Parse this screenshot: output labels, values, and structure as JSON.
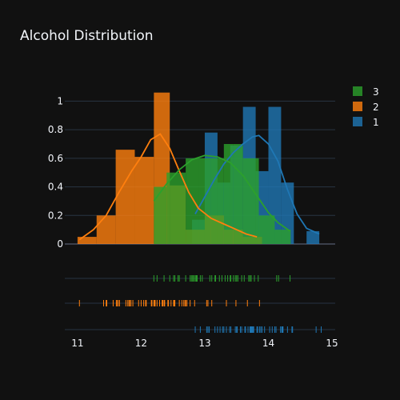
{
  "chart_data": {
    "type": "histogram",
    "title": "Alcohol Distribution",
    "x_range": [
      10.8,
      15.05
    ],
    "y_range": [
      0,
      1.12
    ],
    "x_ticks": [
      11,
      12,
      13,
      14,
      15
    ],
    "y_ticks": [
      0,
      0.2,
      0.4,
      0.6,
      0.8,
      1
    ],
    "x_tick_labels": [
      "11",
      "12",
      "13",
      "14",
      "15"
    ],
    "y_tick_labels": [
      "0",
      "0.2",
      "0.4",
      "0.6",
      "0.8",
      "1"
    ],
    "legend": {
      "placement": "top-right",
      "items": [
        "3",
        "2",
        "1"
      ]
    },
    "histnorm": "probability density",
    "opacity": 0.8,
    "series": [
      {
        "name": "1",
        "color": "#1f77b4",
        "bins": [
          {
            "x0": 12.8,
            "x1": 13.0,
            "density": 0.17
          },
          {
            "x0": 13.0,
            "x1": 13.2,
            "density": 0.78
          },
          {
            "x0": 13.2,
            "x1": 13.4,
            "density": 0.43
          },
          {
            "x0": 13.4,
            "x1": 13.6,
            "density": 0.69
          },
          {
            "x0": 13.6,
            "x1": 13.8,
            "density": 0.96
          },
          {
            "x0": 13.8,
            "x1": 14.0,
            "density": 0.51
          },
          {
            "x0": 14.0,
            "x1": 14.2,
            "density": 0.96
          },
          {
            "x0": 14.2,
            "x1": 14.4,
            "density": 0.43
          },
          {
            "x0": 14.6,
            "x1": 14.8,
            "density": 0.09
          }
        ],
        "kde": [
          [
            12.85,
            0.21
          ],
          [
            13.0,
            0.33
          ],
          [
            13.15,
            0.45
          ],
          [
            13.3,
            0.56
          ],
          [
            13.45,
            0.64
          ],
          [
            13.6,
            0.7
          ],
          [
            13.75,
            0.75
          ],
          [
            13.85,
            0.76
          ],
          [
            14.0,
            0.7
          ],
          [
            14.15,
            0.58
          ],
          [
            14.3,
            0.38
          ],
          [
            14.45,
            0.21
          ],
          [
            14.6,
            0.11
          ],
          [
            14.8,
            0.07
          ]
        ],
        "rug": [
          12.85,
          12.93,
          13.03,
          13.05,
          13.07,
          13.16,
          13.2,
          13.24,
          13.28,
          13.3,
          13.34,
          13.39,
          13.41,
          13.48,
          13.5,
          13.51,
          13.56,
          13.58,
          13.63,
          13.64,
          13.68,
          13.71,
          13.72,
          13.73,
          13.74,
          13.75,
          13.76,
          13.77,
          13.82,
          13.83,
          13.86,
          13.88,
          13.9,
          13.94,
          14.02,
          14.06,
          14.1,
          14.12,
          14.19,
          14.21,
          14.22,
          14.23,
          14.3,
          14.37,
          14.38,
          14.75,
          14.83
        ]
      },
      {
        "name": "2",
        "color": "#ff7f0e",
        "bins": [
          {
            "x0": 11.0,
            "x1": 11.3,
            "density": 0.05
          },
          {
            "x0": 11.3,
            "x1": 11.6,
            "density": 0.2
          },
          {
            "x0": 11.6,
            "x1": 11.9,
            "density": 0.66
          },
          {
            "x0": 11.9,
            "x1": 12.2,
            "density": 0.61
          },
          {
            "x0": 12.2,
            "x1": 12.45,
            "density": 1.06
          },
          {
            "x0": 12.45,
            "x1": 12.7,
            "density": 0.41
          },
          {
            "x0": 12.7,
            "x1": 13.0,
            "density": 0.1
          },
          {
            "x0": 13.0,
            "x1": 13.3,
            "density": 0.2
          },
          {
            "x0": 13.3,
            "x1": 13.6,
            "density": 0.1
          },
          {
            "x0": 13.6,
            "x1": 13.9,
            "density": 0.05
          }
        ],
        "kde": [
          [
            11.03,
            0.03
          ],
          [
            11.25,
            0.1
          ],
          [
            11.45,
            0.2
          ],
          [
            11.65,
            0.36
          ],
          [
            11.85,
            0.51
          ],
          [
            12.0,
            0.61
          ],
          [
            12.15,
            0.73
          ],
          [
            12.3,
            0.77
          ],
          [
            12.45,
            0.67
          ],
          [
            12.6,
            0.51
          ],
          [
            12.75,
            0.36
          ],
          [
            12.9,
            0.25
          ],
          [
            13.1,
            0.18
          ],
          [
            13.3,
            0.14
          ],
          [
            13.5,
            0.1
          ],
          [
            13.65,
            0.07
          ],
          [
            13.82,
            0.05
          ]
        ],
        "rug": [
          11.03,
          11.41,
          11.45,
          11.46,
          11.56,
          11.61,
          11.62,
          11.64,
          11.66,
          11.76,
          11.79,
          11.81,
          11.82,
          11.84,
          11.87,
          11.96,
          12.0,
          12.04,
          12.07,
          12.08,
          12.16,
          12.17,
          12.2,
          12.21,
          12.22,
          12.25,
          12.29,
          12.33,
          12.34,
          12.36,
          12.37,
          12.42,
          12.43,
          12.47,
          12.51,
          12.52,
          12.53,
          12.6,
          12.64,
          12.67,
          12.69,
          12.7,
          12.72,
          12.77,
          12.84,
          13.03,
          13.05,
          13.11,
          13.34,
          13.49,
          13.67,
          13.86
        ]
      },
      {
        "name": "3",
        "color": "#2ca02c",
        "bins": [
          {
            "x0": 12.2,
            "x1": 12.4,
            "density": 0.4
          },
          {
            "x0": 12.4,
            "x1": 12.7,
            "density": 0.5
          },
          {
            "x0": 12.7,
            "x1": 12.9,
            "density": 0.6
          },
          {
            "x0": 12.9,
            "x1": 13.1,
            "density": 0.6
          },
          {
            "x0": 13.1,
            "x1": 13.3,
            "density": 0.6
          },
          {
            "x0": 13.3,
            "x1": 13.45,
            "density": 0.7
          },
          {
            "x0": 13.45,
            "x1": 13.6,
            "density": 0.7
          },
          {
            "x0": 13.6,
            "x1": 13.85,
            "density": 0.6
          },
          {
            "x0": 13.85,
            "x1": 14.1,
            "density": 0.2
          },
          {
            "x0": 14.1,
            "x1": 14.35,
            "density": 0.1
          }
        ],
        "kde": [
          [
            12.2,
            0.3
          ],
          [
            12.4,
            0.42
          ],
          [
            12.6,
            0.52
          ],
          [
            12.8,
            0.59
          ],
          [
            13.0,
            0.62
          ],
          [
            13.2,
            0.61
          ],
          [
            13.4,
            0.57
          ],
          [
            13.6,
            0.48
          ],
          [
            13.8,
            0.35
          ],
          [
            14.0,
            0.22
          ],
          [
            14.15,
            0.15
          ],
          [
            14.34,
            0.09
          ]
        ],
        "rug": [
          12.2,
          12.25,
          12.36,
          12.45,
          12.51,
          12.53,
          12.58,
          12.6,
          12.7,
          12.77,
          12.79,
          12.81,
          12.82,
          12.84,
          12.86,
          12.87,
          12.88,
          12.93,
          12.96,
          13.08,
          13.11,
          13.16,
          13.17,
          13.23,
          13.27,
          13.32,
          13.36,
          13.4,
          13.41,
          13.45,
          13.48,
          13.5,
          13.52,
          13.58,
          13.62,
          13.69,
          13.71,
          13.73,
          13.78,
          13.84,
          14.13,
          14.16,
          14.34
        ]
      }
    ]
  }
}
